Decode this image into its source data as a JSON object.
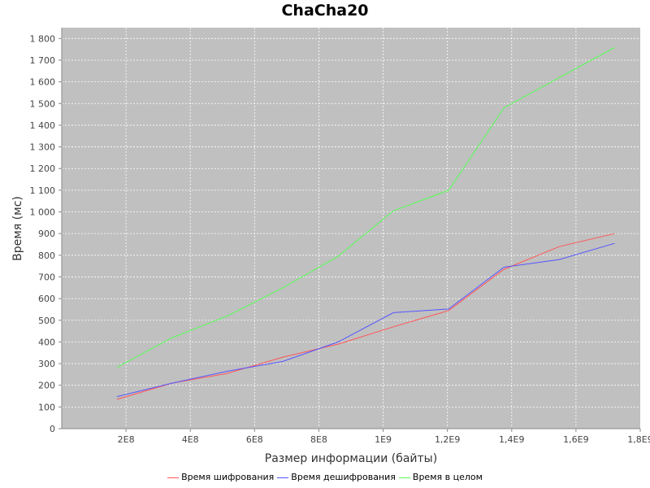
{
  "chart_data": {
    "type": "line",
    "title": "ChaCha20",
    "xlabel": "Размер информации (байты)",
    "ylabel": "Время (мс)",
    "xlim": [
      0,
      1800000000
    ],
    "ylim": [
      0,
      1850
    ],
    "x_ticks": [
      200000000,
      400000000,
      600000000,
      800000000,
      1000000000,
      1200000000,
      1400000000,
      1600000000,
      1800000000
    ],
    "x_tick_labels": [
      "2E8",
      "4E8",
      "6E8",
      "8E8",
      "1E9",
      "1,2E9",
      "1,4E9",
      "1,6E9",
      "1,8E9"
    ],
    "y_ticks": [
      0,
      100,
      200,
      300,
      400,
      500,
      600,
      700,
      800,
      900,
      1000,
      1100,
      1200,
      1300,
      1400,
      1500,
      1600,
      1700,
      1800
    ],
    "y_tick_labels": [
      "0",
      "100",
      "200",
      "300",
      "400",
      "500",
      "600",
      "700",
      "800",
      "900",
      "1 000",
      "1 100",
      "1 200",
      "1 300",
      "1 400",
      "1 500",
      "1 600",
      "1 700",
      "1 800"
    ],
    "grid": true,
    "legend_position": "bottom",
    "background_color": "#c0c0c0",
    "x": [
      172000000,
      344000000,
      516000000,
      688000000,
      860000000,
      1032000000,
      1204000000,
      1376000000,
      1548000000,
      1720000000
    ],
    "series": [
      {
        "name": "Время шифрования",
        "color": "#ff5555",
        "values": [
          135,
          210,
          255,
          330,
          390,
          470,
          545,
          735,
          840,
          900
        ]
      },
      {
        "name": "Время дешифрования",
        "color": "#5555ff",
        "values": [
          148,
          210,
          265,
          310,
          400,
          535,
          552,
          745,
          780,
          855
        ]
      },
      {
        "name": "Время в целом",
        "color": "#55ff55",
        "values": [
          283,
          420,
          520,
          650,
          795,
          1005,
          1100,
          1480,
          1620,
          1758
        ]
      }
    ]
  }
}
